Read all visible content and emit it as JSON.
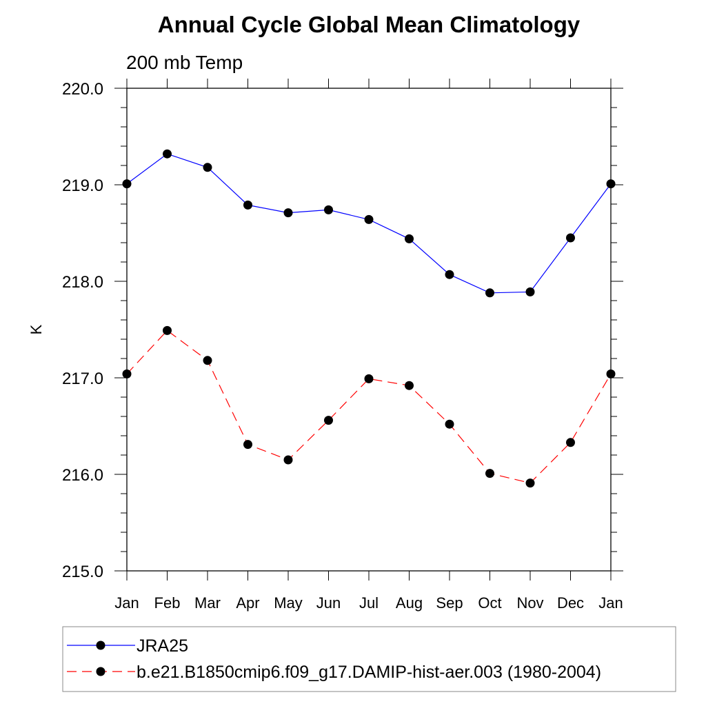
{
  "chart_data": {
    "type": "line",
    "title": "Annual Cycle Global Mean Climatology",
    "subtitle": "200 mb Temp",
    "ylabel": "K",
    "xlabel": "",
    "categories": [
      "Jan",
      "Feb",
      "Mar",
      "Apr",
      "May",
      "Jun",
      "Jul",
      "Aug",
      "Sep",
      "Oct",
      "Nov",
      "Dec",
      "Jan"
    ],
    "ylim": [
      215.0,
      220.0
    ],
    "yticks": [
      "215.0",
      "216.0",
      "217.0",
      "218.0",
      "219.0",
      "220.0"
    ],
    "grid": false,
    "legend_placement": "bottom",
    "series": [
      {
        "name": "JRA25",
        "color": "#0000ff",
        "line_style": "solid",
        "marker": "filled-circle",
        "values": [
          219.01,
          219.32,
          219.18,
          218.79,
          218.71,
          218.74,
          218.64,
          218.44,
          218.07,
          217.88,
          217.89,
          218.45,
          219.01
        ]
      },
      {
        "name": "b.e21.B1850cmip6.f09_g17.DAMIP-hist-aer.003 (1980-2004)",
        "color": "#ff0000",
        "line_style": "dashed",
        "marker": "filled-circle",
        "values": [
          217.04,
          217.49,
          217.18,
          216.31,
          216.15,
          216.56,
          216.99,
          216.92,
          216.52,
          216.01,
          215.91,
          216.33,
          217.04
        ]
      }
    ]
  }
}
